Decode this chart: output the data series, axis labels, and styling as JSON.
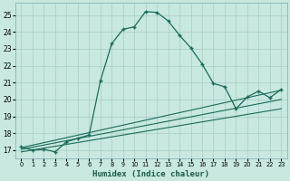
{
  "title": "",
  "xlabel": "Humidex (Indice chaleur)",
  "ylabel": "",
  "bg_color": "#c8e8e0",
  "line_color": "#1a6b5a",
  "xlim": [
    -0.5,
    23.5
  ],
  "ylim": [
    16.5,
    25.7
  ],
  "xticks": [
    0,
    1,
    2,
    3,
    4,
    5,
    6,
    7,
    8,
    9,
    10,
    11,
    12,
    13,
    14,
    15,
    16,
    17,
    18,
    19,
    20,
    21,
    22,
    23
  ],
  "yticks": [
    17,
    18,
    19,
    20,
    21,
    22,
    23,
    24,
    25
  ],
  "main_x": [
    0,
    1,
    2,
    3,
    4,
    5,
    6,
    7,
    8,
    9,
    10,
    11,
    12,
    13,
    14,
    15,
    16,
    17,
    18,
    19,
    20,
    21,
    22,
    23
  ],
  "main_y": [
    17.2,
    17.0,
    17.05,
    16.9,
    17.5,
    17.7,
    17.9,
    21.1,
    23.3,
    24.15,
    24.3,
    25.2,
    25.15,
    24.65,
    23.8,
    23.05,
    22.1,
    20.95,
    20.75,
    19.45,
    20.15,
    20.5,
    20.1,
    20.6
  ],
  "line1_x": [
    0,
    23
  ],
  "line1_y": [
    17.15,
    20.55
  ],
  "line2_x": [
    0,
    23
  ],
  "line2_y": [
    17.05,
    20.0
  ],
  "line3_x": [
    0,
    23
  ],
  "line3_y": [
    16.9,
    19.45
  ]
}
